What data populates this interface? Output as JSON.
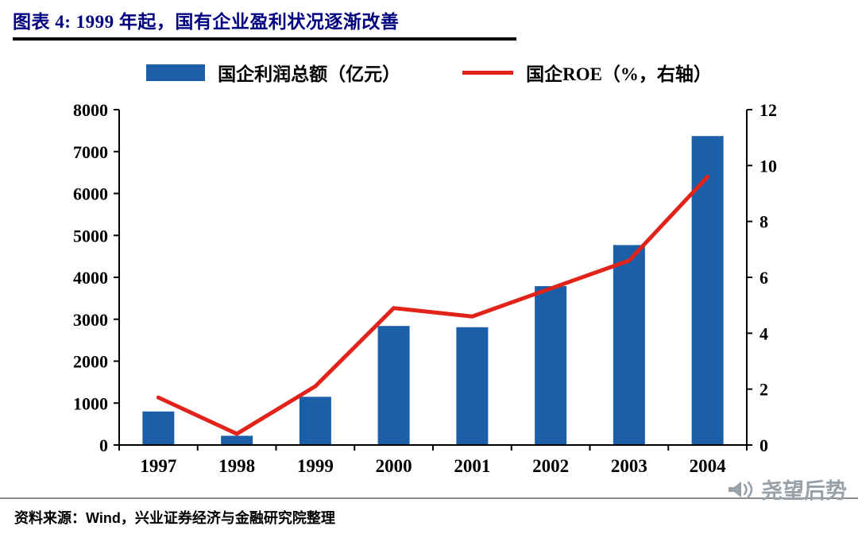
{
  "header": {
    "title": "图表 4:  1999 年起，国有企业盈利状况逐渐改善"
  },
  "legend": {
    "bar_label": "国企利润总额（亿元）",
    "line_label": "国企ROE（%，右轴）"
  },
  "chart_data": {
    "type": "combo-bar-line",
    "categories": [
      "1997",
      "1998",
      "1999",
      "2000",
      "2001",
      "2002",
      "2003",
      "2004"
    ],
    "series": [
      {
        "name": "国企利润总额（亿元）",
        "type": "bar",
        "axis": "left",
        "color": "#1A5FA8",
        "values": [
          800,
          220,
          1150,
          2840,
          2810,
          3790,
          4770,
          7370
        ]
      },
      {
        "name": "国企ROE（%，右轴）",
        "type": "line",
        "axis": "right",
        "color": "#E2231A",
        "values": [
          1.7,
          0.4,
          2.1,
          4.9,
          4.6,
          5.6,
          6.6,
          9.6
        ]
      }
    ],
    "left_axis": {
      "min": 0,
      "max": 8000,
      "step": 1000
    },
    "right_axis": {
      "min": 0,
      "max": 12,
      "step": 2
    },
    "grid": false,
    "legend_position": "top"
  },
  "colors": {
    "title": "#000080",
    "axis": "#000000",
    "divider": "#8C8C8C",
    "watermark": "#98A0A8"
  },
  "footer": {
    "source": "资料来源：Wind，兴业证券经济与金融研究院整理",
    "watermark": "尧望后势"
  }
}
